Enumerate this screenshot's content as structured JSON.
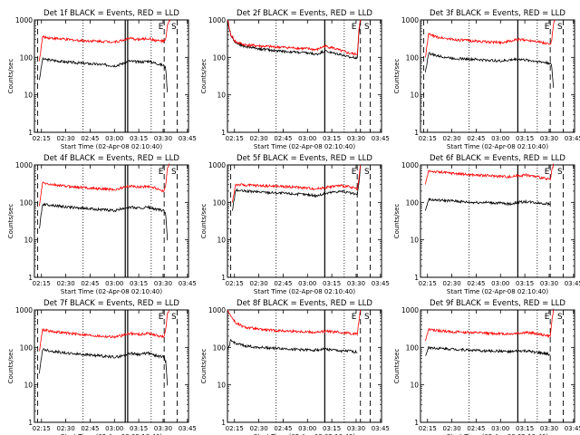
{
  "figure": {
    "x_label": "Start Time (02-Apr-08 02:10:40)",
    "y_label": "Counts/sec",
    "x_ticks": [
      "02:15",
      "02:30",
      "02:45",
      "03:00",
      "03:15",
      "03:30",
      "03:45"
    ],
    "y_ticks": [
      "1",
      "10",
      "100",
      "1000"
    ],
    "markers": [
      "E",
      "S"
    ],
    "colors": {
      "events": "#000000",
      "lld": "#ff0000"
    }
  },
  "chart_data": [
    {
      "type": "line",
      "title": "Det 1f BLACK = Events, RED = LLD",
      "y_log": true,
      "ylim": [
        1,
        1000
      ],
      "x_range_min": [
        0,
        95
      ],
      "vlines_solid": [
        56,
        57.5
      ],
      "vlines_dotted": [
        30,
        72
      ],
      "vlines_dashed": [
        2,
        80,
        88
      ],
      "series": [
        {
          "name": "Events",
          "color": "#000000",
          "t": [
            3,
            5,
            10,
            20,
            30,
            40,
            50,
            55,
            58,
            65,
            70,
            75,
            80,
            81,
            82
          ],
          "v": [
            25,
            90,
            85,
            75,
            70,
            65,
            60,
            70,
            80,
            75,
            80,
            70,
            60,
            50,
            12
          ]
        },
        {
          "name": "LLD",
          "color": "#ff0000",
          "t": [
            3,
            5,
            10,
            20,
            30,
            40,
            50,
            55,
            58,
            65,
            70,
            75,
            80,
            81,
            82,
            83,
            84
          ],
          "v": [
            80,
            350,
            330,
            300,
            280,
            270,
            260,
            290,
            320,
            300,
            320,
            280,
            270,
            300,
            700,
            900,
            1000
          ]
        }
      ]
    },
    {
      "type": "line",
      "title": "Det 2f BLACK = Events, RED = LLD",
      "y_log": true,
      "ylim": [
        1,
        1000
      ],
      "x_range_min": [
        0,
        95
      ],
      "vlines_solid": [
        60
      ],
      "vlines_dotted": [
        30,
        72
      ],
      "vlines_dashed": [
        82,
        88
      ],
      "series": [
        {
          "name": "Events",
          "color": "#000000",
          "t": [
            0,
            2,
            5,
            10,
            20,
            30,
            40,
            50,
            55,
            60,
            65,
            70,
            75,
            80,
            81,
            82
          ],
          "v": [
            1000,
            400,
            250,
            200,
            170,
            150,
            140,
            130,
            120,
            150,
            130,
            120,
            100,
            100,
            400,
            1000
          ]
        },
        {
          "name": "LLD",
          "color": "#ff0000",
          "t": [
            0,
            2,
            5,
            10,
            20,
            30,
            40,
            50,
            55,
            60,
            65,
            70,
            75,
            80,
            81,
            82
          ],
          "v": [
            1000,
            400,
            260,
            220,
            200,
            190,
            180,
            170,
            160,
            200,
            180,
            150,
            130,
            120,
            500,
            1000
          ]
        }
      ]
    },
    {
      "type": "line",
      "title": "Det 3f BLACK = Events, RED = LLD",
      "y_log": true,
      "ylim": [
        1,
        1000
      ],
      "x_range_min": [
        0,
        95
      ],
      "vlines_solid": [
        60
      ],
      "vlines_dotted": [
        30,
        72
      ],
      "vlines_dashed": [
        2,
        80,
        88
      ],
      "series": [
        {
          "name": "Events",
          "color": "#000000",
          "t": [
            3,
            5,
            10,
            20,
            30,
            40,
            50,
            55,
            60,
            65,
            70,
            75,
            80,
            81,
            82
          ],
          "v": [
            40,
            130,
            110,
            95,
            90,
            85,
            80,
            85,
            90,
            85,
            80,
            75,
            70,
            55,
            15
          ]
        },
        {
          "name": "LLD",
          "color": "#ff0000",
          "t": [
            3,
            5,
            10,
            20,
            30,
            40,
            50,
            55,
            60,
            65,
            70,
            75,
            80,
            81,
            82,
            83
          ],
          "v": [
            100,
            420,
            350,
            300,
            280,
            260,
            250,
            270,
            300,
            290,
            280,
            250,
            220,
            300,
            800,
            1000
          ]
        }
      ]
    },
    {
      "type": "line",
      "title": "Det 4f BLACK = Events, RED = LLD",
      "y_log": true,
      "ylim": [
        1,
        1000
      ],
      "x_range_min": [
        0,
        95
      ],
      "vlines_solid": [
        56,
        57.5
      ],
      "vlines_dotted": [
        30,
        72
      ],
      "vlines_dashed": [
        2,
        80,
        88
      ],
      "series": [
        {
          "name": "Events",
          "color": "#000000",
          "t": [
            3,
            5,
            10,
            20,
            30,
            40,
            50,
            55,
            58,
            65,
            70,
            75,
            80,
            81,
            82
          ],
          "v": [
            20,
            90,
            85,
            75,
            70,
            65,
            60,
            70,
            75,
            70,
            75,
            65,
            60,
            45,
            10
          ]
        },
        {
          "name": "LLD",
          "color": "#ff0000",
          "t": [
            3,
            5,
            10,
            20,
            30,
            40,
            50,
            55,
            58,
            65,
            70,
            75,
            80,
            81,
            82,
            83
          ],
          "v": [
            80,
            330,
            300,
            270,
            250,
            230,
            220,
            250,
            270,
            260,
            270,
            240,
            200,
            300,
            800,
            1000
          ]
        }
      ]
    },
    {
      "type": "line",
      "title": "Det 5f BLACK = Events, RED = LLD",
      "y_log": true,
      "ylim": [
        1,
        1000
      ],
      "x_range_min": [
        0,
        95
      ],
      "vlines_solid": [
        60
      ],
      "vlines_dotted": [
        30,
        72
      ],
      "vlines_dashed": [
        2,
        80,
        88
      ],
      "series": [
        {
          "name": "Events",
          "color": "#000000",
          "t": [
            3,
            5,
            10,
            20,
            30,
            40,
            50,
            55,
            60,
            65,
            70,
            75,
            80,
            81,
            82
          ],
          "v": [
            60,
            210,
            200,
            190,
            180,
            170,
            160,
            150,
            170,
            190,
            200,
            180,
            160,
            300,
            900
          ]
        },
        {
          "name": "LLD",
          "color": "#ff0000",
          "t": [
            3,
            5,
            10,
            20,
            30,
            40,
            50,
            55,
            60,
            65,
            70,
            75,
            80,
            81,
            82
          ],
          "v": [
            100,
            300,
            290,
            280,
            270,
            260,
            240,
            230,
            250,
            270,
            280,
            260,
            230,
            400,
            1000
          ]
        }
      ]
    },
    {
      "type": "line",
      "title": "Det 6f BLACK = Events, RED = LLD",
      "y_log": true,
      "ylim": [
        1,
        1000
      ],
      "x_range_min": [
        0,
        95
      ],
      "vlines_solid": [
        60
      ],
      "vlines_dotted": [
        30,
        72
      ],
      "vlines_dashed": [
        80,
        88
      ],
      "series": [
        {
          "name": "Events",
          "color": "#000000",
          "t": [
            3,
            5,
            10,
            20,
            30,
            40,
            50,
            55,
            60,
            65,
            70,
            75,
            80
          ],
          "v": [
            60,
            120,
            115,
            110,
            100,
            100,
            95,
            90,
            100,
            105,
            100,
            95,
            90
          ]
        },
        {
          "name": "LLD",
          "color": "#ff0000",
          "t": [
            3,
            5,
            10,
            20,
            30,
            40,
            50,
            55,
            60,
            65,
            70,
            75,
            80,
            81,
            82
          ],
          "v": [
            300,
            700,
            650,
            600,
            550,
            520,
            500,
            480,
            520,
            540,
            500,
            450,
            400,
            700,
            1000
          ]
        }
      ]
    },
    {
      "type": "line",
      "title": "Det 7f BLACK = Events, RED = LLD",
      "y_log": true,
      "ylim": [
        1,
        1000
      ],
      "x_range_min": [
        0,
        95
      ],
      "vlines_solid": [
        56,
        57.5
      ],
      "vlines_dotted": [
        30,
        72
      ],
      "vlines_dashed": [
        2,
        80,
        88
      ],
      "series": [
        {
          "name": "Events",
          "color": "#000000",
          "t": [
            3,
            5,
            10,
            20,
            30,
            40,
            50,
            55,
            58,
            65,
            70,
            75,
            80,
            81,
            82
          ],
          "v": [
            20,
            90,
            80,
            70,
            65,
            60,
            55,
            60,
            70,
            65,
            70,
            60,
            55,
            40,
            10
          ]
        },
        {
          "name": "LLD",
          "color": "#ff0000",
          "t": [
            3,
            5,
            10,
            20,
            30,
            40,
            50,
            55,
            58,
            65,
            70,
            75,
            80,
            81,
            82,
            83
          ],
          "v": [
            80,
            300,
            270,
            240,
            220,
            200,
            190,
            210,
            240,
            220,
            240,
            210,
            190,
            300,
            800,
            1000
          ]
        }
      ]
    },
    {
      "type": "line",
      "title": "Det 8f BLACK = Events, RED = LLD",
      "y_log": true,
      "ylim": [
        1,
        1000
      ],
      "x_range_min": [
        0,
        95
      ],
      "vlines_solid": [
        60
      ],
      "vlines_dotted": [
        30,
        72
      ],
      "vlines_dashed": [
        82,
        88
      ],
      "series": [
        {
          "name": "Events",
          "color": "#000000",
          "t": [
            0,
            2,
            5,
            10,
            20,
            30,
            40,
            50,
            55,
            60,
            65,
            70,
            75,
            80
          ],
          "v": [
            80,
            150,
            130,
            110,
            100,
            95,
            90,
            85,
            85,
            90,
            85,
            80,
            80,
            75
          ]
        },
        {
          "name": "LLD",
          "color": "#ff0000",
          "t": [
            0,
            2,
            5,
            10,
            20,
            30,
            40,
            50,
            55,
            60,
            65,
            70,
            75,
            80,
            81,
            82
          ],
          "v": [
            1000,
            700,
            450,
            350,
            300,
            280,
            270,
            260,
            250,
            270,
            260,
            250,
            240,
            230,
            500,
            1000
          ]
        }
      ]
    },
    {
      "type": "line",
      "title": "Det 9f BLACK = Events, RED = LLD",
      "y_log": true,
      "ylim": [
        1,
        1000
      ],
      "x_range_min": [
        0,
        95
      ],
      "vlines_solid": [
        60
      ],
      "vlines_dotted": [
        30,
        72
      ],
      "vlines_dashed": [
        80,
        88
      ],
      "series": [
        {
          "name": "Events",
          "color": "#000000",
          "t": [
            3,
            5,
            10,
            20,
            30,
            40,
            50,
            55,
            60,
            65,
            70,
            75,
            80
          ],
          "v": [
            60,
            100,
            95,
            90,
            85,
            80,
            80,
            75,
            80,
            80,
            75,
            70,
            65
          ]
        },
        {
          "name": "LLD",
          "color": "#ff0000",
          "t": [
            3,
            5,
            10,
            20,
            30,
            40,
            50,
            55,
            60,
            65,
            70,
            75,
            80,
            81,
            82
          ],
          "v": [
            150,
            300,
            280,
            260,
            250,
            240,
            230,
            230,
            240,
            250,
            240,
            220,
            200,
            500,
            1000
          ]
        }
      ]
    }
  ]
}
